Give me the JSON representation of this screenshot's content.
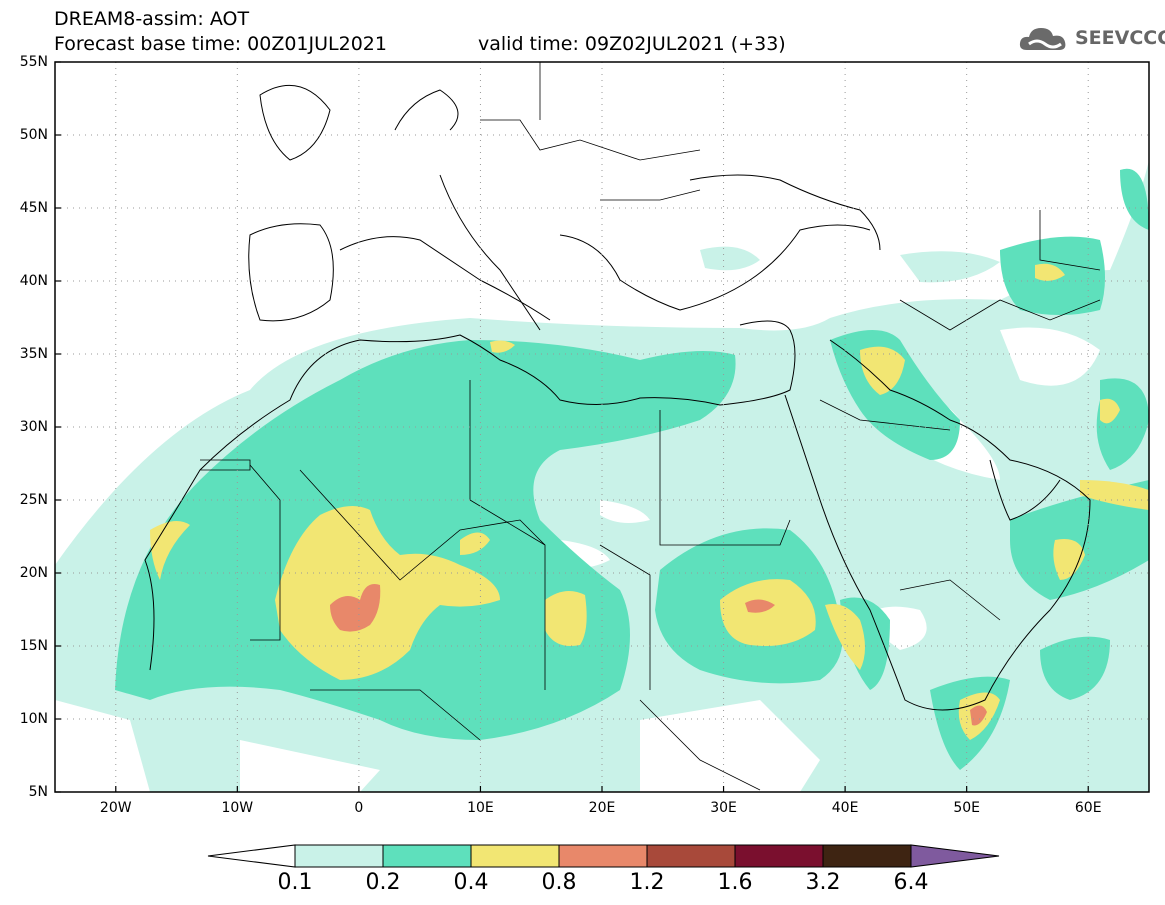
{
  "header": {
    "title": "DREAM8-assim: AOT",
    "base_time": "Forecast base time: 00Z01JUL2021",
    "valid_time": "valid time: 09Z02JUL2021 (+33)"
  },
  "logo": {
    "text": "SEEVCCC",
    "icon": "cloud-icon"
  },
  "map": {
    "projection": "lat-lon",
    "lon_range": [
      -25,
      65
    ],
    "lat_range": [
      5,
      55
    ],
    "lat_labels": [
      "55N",
      "50N",
      "45N",
      "40N",
      "35N",
      "30N",
      "25N",
      "20N",
      "15N",
      "10N",
      "5N"
    ],
    "lon_labels": [
      "20W",
      "10W",
      "0",
      "10E",
      "20E",
      "30E",
      "40E",
      "50E",
      "60E"
    ],
    "grid": "dotted"
  },
  "legend": {
    "labels": [
      "0.1",
      "0.2",
      "0.4",
      "0.8",
      "1.2",
      "1.6",
      "3.2",
      "6.4"
    ],
    "colors": [
      "#ffffff",
      "#c9f2e8",
      "#5ee0bc",
      "#f2e673",
      "#e8886a",
      "#a8493a",
      "#7a0f2e",
      "#3e2412",
      "#7f5a9e"
    ]
  },
  "colors": {
    "level1": "#c9f2e8",
    "level2": "#5ee0bc",
    "level3": "#f2e673",
    "level4": "#e8886a",
    "level5": "#a8493a"
  }
}
